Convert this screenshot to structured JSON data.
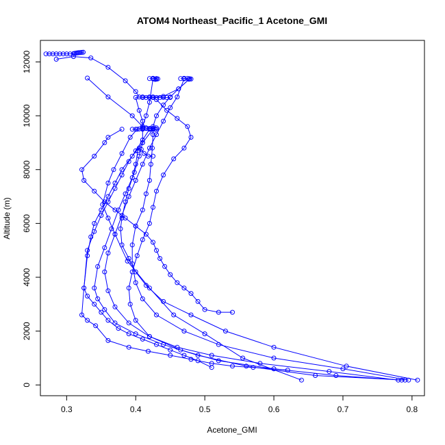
{
  "chart_data": {
    "type": "scatter",
    "title": "ATOM4 Northeast_Pacific_1 Acetone_GMI",
    "xlabel": "Acetone_GMI",
    "ylabel": "Altitude (m)",
    "xlim": [
      0.262,
      0.818
    ],
    "ylim": [
      -400,
      12800
    ],
    "x_ticks": [
      0.3,
      0.4,
      0.5,
      0.6,
      0.7,
      0.8
    ],
    "x_tick_labels": [
      "0.3",
      "0.4",
      "0.5",
      "0.6",
      "0.7",
      "0.8"
    ],
    "y_ticks": [
      0,
      2000,
      4000,
      6000,
      8000,
      10000,
      12000
    ],
    "y_tick_labels": [
      "0",
      "2000",
      "4000",
      "6000",
      "8000",
      "10000",
      "12000"
    ],
    "grid": false,
    "marker": "open-circle",
    "series_color": "#0000ff",
    "profiles": [
      {
        "x": [
          0.64,
          0.555,
          0.5,
          0.455,
          0.42,
          0.388,
          0.37,
          0.36,
          0.352,
          0.36,
          0.368,
          0.38,
          0.392,
          0.402,
          0.41,
          0.41,
          0.405,
          0.4,
          0.41,
          0.42,
          0.44,
          0.462,
          0.478
        ],
        "y": [
          180,
          1000,
          1900,
          2600,
          3600,
          4600,
          5600,
          6200,
          6700,
          7500,
          8000,
          8600,
          9200,
          9500,
          9550,
          9800,
          10200,
          10680,
          10700,
          10700,
          10720,
          11000,
          11370
        ]
      },
      {
        "x": [
          0.808,
          0.705,
          0.6,
          0.53,
          0.48,
          0.44,
          0.415,
          0.4,
          0.39,
          0.38,
          0.378,
          0.38,
          0.385,
          0.39,
          0.398,
          0.405,
          0.41,
          0.41,
          0.41,
          0.415,
          0.42,
          0.425
        ],
        "y": [
          180,
          700,
          1400,
          2000,
          2600,
          3100,
          3700,
          4200,
          4700,
          5200,
          5800,
          6200,
          6800,
          7300,
          7900,
          8500,
          9000,
          9500,
          9600,
          10000,
          10500,
          11370
        ]
      },
      {
        "x": [
          0.795,
          0.7,
          0.6,
          0.52,
          0.47,
          0.43,
          0.41,
          0.4,
          0.395,
          0.395,
          0.4,
          0.41,
          0.415,
          0.42,
          0.422,
          0.424,
          0.425,
          0.425,
          0.43,
          0.44,
          0.45,
          0.462,
          0.478
        ],
        "y": [
          180,
          600,
          1000,
          1500,
          2000,
          2600,
          3200,
          3800,
          4500,
          5200,
          5900,
          6500,
          7100,
          7600,
          8200,
          8800,
          9300,
          9600,
          10000,
          10400,
          10700,
          11000,
          11370
        ]
      },
      {
        "x": [
          0.785,
          0.69,
          0.6,
          0.52,
          0.465,
          0.42,
          0.4,
          0.392,
          0.39,
          0.395,
          0.402,
          0.41,
          0.42,
          0.425,
          0.43,
          0.44,
          0.455,
          0.47,
          0.48,
          0.475,
          0.46,
          0.445,
          0.43,
          0.425
        ],
        "y": [
          180,
          350,
          600,
          900,
          1300,
          1800,
          2400,
          3000,
          3600,
          4200,
          4800,
          5400,
          6000,
          6600,
          7200,
          7800,
          8400,
          8800,
          9200,
          9600,
          9900,
          10200,
          10600,
          10700
        ]
      },
      {
        "x": [
          0.78,
          0.68,
          0.58,
          0.51,
          0.46,
          0.42,
          0.39,
          0.37,
          0.36,
          0.355,
          0.36,
          0.37,
          0.38,
          0.39,
          0.4,
          0.41,
          0.42,
          0.43,
          0.44,
          0.45,
          0.46,
          0.47
        ],
        "y": [
          180,
          500,
          800,
          1100,
          1400,
          1800,
          2300,
          2900,
          3500,
          4200,
          4900,
          5600,
          6300,
          7000,
          7600,
          8200,
          8800,
          9300,
          9800,
          10300,
          10700,
          11370
        ]
      },
      {
        "x": [
          0.79,
          0.66,
          0.56,
          0.49,
          0.44,
          0.4,
          0.37,
          0.355,
          0.345,
          0.34,
          0.345,
          0.355,
          0.365,
          0.375,
          0.385,
          0.395,
          0.4,
          0.403,
          0.405,
          0.408,
          0.412,
          0.418,
          0.425
        ],
        "y": [
          180,
          350,
          700,
          1100,
          1500,
          1900,
          2300,
          2800,
          3200,
          3600,
          4400,
          5100,
          5800,
          6500,
          7100,
          7700,
          8200,
          8700,
          8800,
          8750,
          8600,
          8500,
          8500
        ]
      },
      {
        "x": [
          0.38,
          0.36,
          0.355,
          0.34,
          0.322,
          0.325,
          0.34,
          0.355,
          0.37,
          0.385,
          0.4,
          0.415,
          0.425,
          0.43,
          0.435,
          0.442,
          0.45,
          0.46,
          0.47,
          0.48,
          0.49,
          0.5,
          0.52,
          0.54
        ],
        "y": [
          9500,
          9200,
          9000,
          8500,
          8000,
          7600,
          7200,
          6800,
          6500,
          6200,
          5900,
          5600,
          5300,
          5000,
          4700,
          4400,
          4100,
          3800,
          3600,
          3400,
          3100,
          2800,
          2700,
          2700
        ]
      },
      {
        "x": [
          0.42,
          0.41,
          0.4,
          0.39,
          0.38,
          0.37,
          0.36,
          0.35,
          0.34,
          0.33,
          0.325,
          0.33,
          0.34,
          0.35,
          0.36,
          0.375,
          0.39,
          0.41,
          0.43,
          0.45,
          0.47,
          0.49,
          0.51
        ],
        "y": [
          9500,
          9100,
          8700,
          8300,
          7800,
          7300,
          6800,
          6300,
          5700,
          5000,
          3600,
          3300,
          3000,
          2700,
          2400,
          2100,
          1900,
          1700,
          1500,
          1300,
          1100,
          900,
          650
        ]
      },
      {
        "x": [
          0.425,
          0.41,
          0.395,
          0.38,
          0.37,
          0.36,
          0.35,
          0.34,
          0.335,
          0.33,
          0.325,
          0.322,
          0.33,
          0.342,
          0.36,
          0.39,
          0.418,
          0.45,
          0.48,
          0.51,
          0.54,
          0.57,
          0.6,
          0.62
        ],
        "y": [
          9500,
          9000,
          8500,
          8000,
          7500,
          7000,
          6500,
          6000,
          5500,
          4800,
          3600,
          2600,
          2400,
          2200,
          1650,
          1400,
          1250,
          1100,
          950,
          800,
          700,
          650,
          600,
          550
        ]
      },
      {
        "x": [
          0.27,
          0.275,
          0.28,
          0.285,
          0.29,
          0.295,
          0.3,
          0.305,
          0.31,
          0.312,
          0.314,
          0.316,
          0.318,
          0.32,
          0.322,
          0.324
        ],
        "y": [
          12300,
          12300,
          12300,
          12300,
          12300,
          12300,
          12300,
          12300,
          12310,
          12320,
          12330,
          12340,
          12345,
          12350,
          12355,
          12360
        ]
      },
      {
        "x": [
          0.285,
          0.31,
          0.335,
          0.36,
          0.385,
          0.4,
          0.405,
          0.41,
          0.415,
          0.42,
          0.425,
          0.43,
          0.435,
          0.44,
          0.445,
          0.45
        ],
        "y": [
          12100,
          12200,
          12150,
          11800,
          11300,
          10900,
          10700,
          10680,
          10680,
          10680,
          10680,
          10680,
          10680,
          10680,
          10680,
          10680
        ]
      },
      {
        "x": [
          0.33,
          0.36,
          0.395,
          0.41,
          0.415,
          0.42,
          0.422,
          0.425,
          0.428,
          0.43
        ],
        "y": [
          11400,
          10700,
          10000,
          9600,
          9550,
          9520,
          9510,
          9505,
          9500,
          9500
        ]
      },
      {
        "x": [
          0.395,
          0.4,
          0.405,
          0.41,
          0.415,
          0.42,
          0.425,
          0.43
        ],
        "y": [
          9500,
          9500,
          9510,
          9520,
          9525,
          9530,
          9540,
          9550
        ]
      },
      {
        "x": [
          0.42,
          0.425,
          0.43,
          0.432,
          0.43,
          0.428
        ],
        "y": [
          11380,
          11390,
          11380,
          11370,
          11360,
          11350
        ]
      },
      {
        "x": [
          0.465,
          0.47,
          0.475,
          0.478,
          0.48,
          0.477
        ],
        "y": [
          11380,
          11390,
          11385,
          11375,
          11365,
          11355
        ]
      }
    ]
  }
}
